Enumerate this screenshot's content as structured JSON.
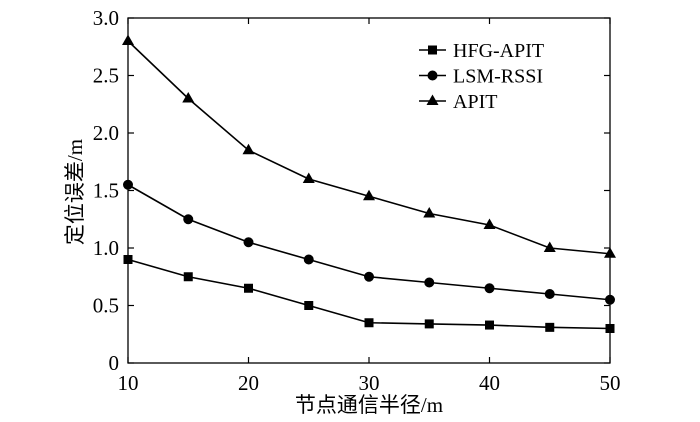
{
  "chart_data": {
    "type": "line",
    "title": "",
    "xlabel": "节点通信半径/m",
    "ylabel": "定位误差/m",
    "xlim": [
      10,
      50
    ],
    "ylim": [
      0,
      3.0
    ],
    "xticks": [
      10,
      20,
      30,
      40,
      50
    ],
    "xtick_labels": [
      "10",
      "20",
      "30",
      "40",
      "50"
    ],
    "yticks": [
      0,
      0.5,
      1.0,
      1.5,
      2.0,
      2.5,
      3.0
    ],
    "ytick_labels": [
      "0",
      "0.5",
      "1.0",
      "1.5",
      "2.0",
      "2.5",
      "3.0"
    ],
    "grid": false,
    "legend": "top-right",
    "x": [
      10,
      15,
      20,
      25,
      30,
      35,
      40,
      45,
      50
    ],
    "series": [
      {
        "name": "HFG-APIT",
        "marker": "square",
        "color": "#000000",
        "values": [
          0.9,
          0.75,
          0.65,
          0.5,
          0.35,
          0.34,
          0.33,
          0.31,
          0.3
        ]
      },
      {
        "name": "LSM-RSSI",
        "marker": "circle",
        "color": "#000000",
        "values": [
          1.55,
          1.25,
          1.05,
          0.9,
          0.75,
          0.7,
          0.65,
          0.6,
          0.55
        ]
      },
      {
        "name": "APIT",
        "marker": "triangle",
        "color": "#000000",
        "values": [
          2.8,
          2.3,
          1.85,
          1.6,
          1.45,
          1.3,
          1.2,
          1.0,
          0.95
        ]
      }
    ]
  }
}
